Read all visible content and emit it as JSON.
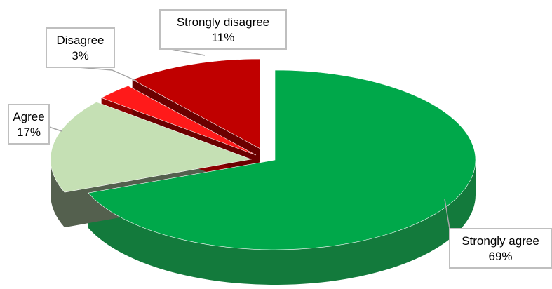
{
  "chart_data": {
    "type": "pie",
    "style": "3d-exploded",
    "slices": [
      {
        "category": "Strongly agree",
        "percent_label": "69%",
        "value": 69,
        "color": "#00a84a",
        "side_color": "#137a3c"
      },
      {
        "category": "Agree",
        "percent_label": "17%",
        "value": 17,
        "color": "#c5e0b4",
        "side_color": "#54604e"
      },
      {
        "category": "Disagree",
        "percent_label": "3%",
        "value": 3,
        "color": "#ff1a1a",
        "side_color": "#8b0000"
      },
      {
        "category": "Strongly disagree",
        "percent_label": "11%",
        "value": 11,
        "color": "#c00000",
        "side_color": "#6b0000"
      }
    ]
  }
}
